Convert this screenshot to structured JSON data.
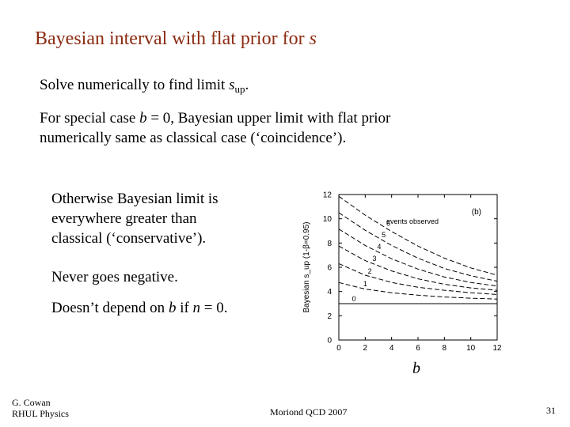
{
  "slide": {
    "title_main": "Bayesian interval with flat prior for ",
    "title_var": "s",
    "line1_pre": "Solve numerically to find limit ",
    "line1_var": "s",
    "line1_sub": "up",
    "line1_post": ".",
    "line2_pre": "For special case ",
    "line2_var": "b",
    "line2_post": " = 0, Bayesian upper limit with flat prior",
    "line3": "numerically same as classical case (‘coincidence’).",
    "bullet1_l1": "Otherwise Bayesian limit is",
    "bullet1_l2": "everywhere greater than",
    "bullet1_l3": "classical (‘conservative’).",
    "bullet2": "Never goes negative.",
    "bullet3_pre": "Doesn’t depend on ",
    "bullet3_b": "b",
    "bullet3_mid": " if ",
    "bullet3_n": "n",
    "bullet3_post": " = 0."
  },
  "footer": {
    "author": "G. Cowan",
    "institution": "RHUL Physics",
    "conference": "Moriond QCD 2007",
    "page": "31"
  },
  "chart_data": {
    "type": "line",
    "ylabel": "Bayesian  s_up (1-β=0.95)",
    "xlabel": "b",
    "panel_label": "(b)",
    "xlim": [
      0,
      12
    ],
    "ylim": [
      0,
      12
    ],
    "xticks": [
      "0",
      "2",
      "4",
      "6",
      "8",
      "10",
      "12"
    ],
    "yticks": [
      "0",
      "2",
      "4",
      "6",
      "8",
      "10",
      "12"
    ],
    "annotation": "events observed",
    "series": [
      {
        "name": "0",
        "x": [
          0,
          12
        ],
        "y": [
          3.0,
          3.0
        ]
      },
      {
        "name": "1",
        "x": [
          0,
          2,
          4,
          6,
          8,
          10,
          12
        ],
        "y": [
          4.74,
          4.2,
          3.9,
          3.7,
          3.55,
          3.45,
          3.38
        ]
      },
      {
        "name": "2",
        "x": [
          0,
          2,
          4,
          6,
          8,
          10,
          12
        ],
        "y": [
          6.3,
          5.35,
          4.75,
          4.35,
          4.1,
          3.9,
          3.75
        ]
      },
      {
        "name": "3",
        "x": [
          0,
          2,
          4,
          6,
          8,
          10,
          12
        ],
        "y": [
          7.75,
          6.55,
          5.7,
          5.05,
          4.6,
          4.3,
          4.1
        ]
      },
      {
        "name": "4",
        "x": [
          0,
          2,
          4,
          6,
          8,
          10,
          12
        ],
        "y": [
          9.15,
          7.8,
          6.7,
          5.85,
          5.2,
          4.75,
          4.45
        ]
      },
      {
        "name": "5",
        "x": [
          0,
          2,
          4,
          6,
          8,
          10,
          12
        ],
        "y": [
          10.5,
          9.05,
          7.8,
          6.75,
          5.9,
          5.3,
          4.85
        ]
      },
      {
        "name": "6",
        "x": [
          0,
          2,
          4,
          6,
          8,
          10,
          12
        ],
        "y": [
          11.85,
          10.3,
          8.95,
          7.75,
          6.75,
          5.95,
          5.35
        ]
      }
    ]
  }
}
